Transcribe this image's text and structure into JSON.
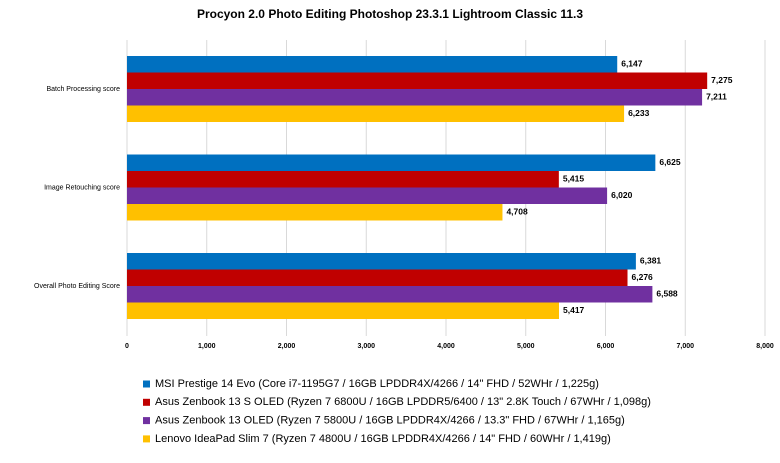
{
  "chart_data": {
    "type": "hbar",
    "title": "Procyon 2.0 Photo Editing Photoshop  23.3.1 Lightroom Classic 11.3",
    "categories": [
      "Batch Processing score",
      "Image Retouching score",
      "Overall Photo Editing Score"
    ],
    "series": [
      {
        "name": "MSI Prestige 14 Evo (Core i7-1195G7 / 16GB LPDDR4X/4266 / 14\" FHD / 52WHr / 1,225g)",
        "color": "#0070c0",
        "values": [
          6147,
          6625,
          6381
        ],
        "value_labels": [
          "6,147",
          "6,625",
          "6,381"
        ]
      },
      {
        "name": "Asus Zenbook 13 S OLED (Ryzen 7 6800U / 16GB LPDDR5/6400 / 13\" 2.8K Touch / 67WHr / 1,098g)",
        "color": "#c00000",
        "values": [
          7275,
          5415,
          6276
        ],
        "value_labels": [
          "7,275",
          "5,415",
          "6,276"
        ]
      },
      {
        "name": "Asus Zenbook 13 OLED (Ryzen 7 5800U / 16GB LPDDR4X/4266 / 13.3\" FHD / 67WHr / 1,165g)",
        "color": "#7030a0",
        "values": [
          7211,
          6020,
          6588
        ],
        "value_labels": [
          "7,211",
          "6,020",
          "6,588"
        ]
      },
      {
        "name": "Lenovo IdeaPad Slim 7 (Ryzen 7 4800U / 16GB LPDDR4X/4266 / 14\" FHD / 60WHr / 1,419g)",
        "color": "#ffc000",
        "values": [
          6233,
          4708,
          5417
        ],
        "value_labels": [
          "6,233",
          "4,708",
          "5,417"
        ]
      }
    ],
    "xlim": [
      0,
      8000
    ],
    "xticks": [
      0,
      {
        "value": 1000,
        "label": "1,000"
      },
      {
        "value": 2000,
        "label": "2,000"
      },
      {
        "value": 3000,
        "label": "3,000"
      },
      {
        "value": 4000,
        "label": "4,000"
      },
      {
        "value": 5000,
        "label": "5,000"
      },
      {
        "value": 6000,
        "label": "6,000"
      },
      {
        "value": 7000,
        "label": "7,000"
      },
      {
        "value": 8000,
        "label": "8,000"
      }
    ],
    "grid": true,
    "legend": "bottom"
  }
}
